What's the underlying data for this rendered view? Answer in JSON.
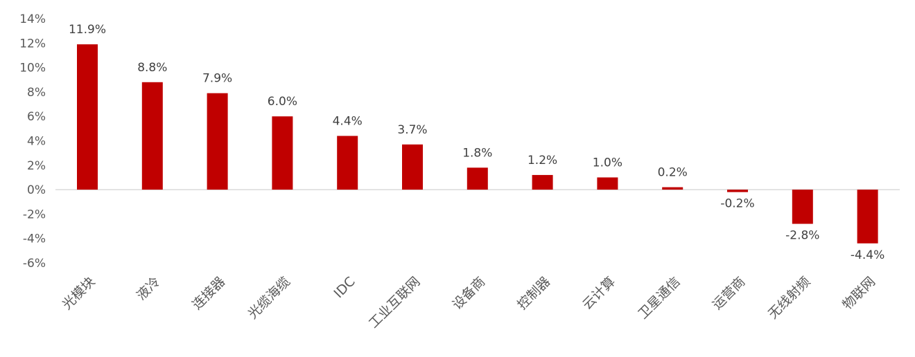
{
  "chart_data": {
    "type": "bar",
    "categories": [
      "光模块",
      "液冷",
      "连接器",
      "光缆海缆",
      "IDC",
      "工业互联网",
      "设备商",
      "控制器",
      "云计算",
      "卫星通信",
      "运营商",
      "无线射频",
      "物联网"
    ],
    "values": [
      11.9,
      8.8,
      7.9,
      6.0,
      4.4,
      3.7,
      1.8,
      1.2,
      1.0,
      0.2,
      -0.2,
      -2.8,
      -4.4
    ],
    "data_labels": [
      "11.9%",
      "8.8%",
      "7.9%",
      "6.0%",
      "4.4%",
      "3.7%",
      "1.8%",
      "1.2%",
      "1.0%",
      "0.2%",
      "-0.2%",
      "-2.8%",
      "-4.4%"
    ],
    "y_ticks": [
      14,
      12,
      10,
      8,
      6,
      4,
      2,
      0,
      -2,
      -4,
      -6
    ],
    "y_tick_labels": [
      "14%",
      "12%",
      "10%",
      "8%",
      "6%",
      "4%",
      "2%",
      "0%",
      "-2%",
      "-4%",
      "-6%"
    ],
    "ylim": [
      -6,
      14
    ],
    "unit": "%",
    "grid": false,
    "legend": "none",
    "colors": {
      "bar": "#C00000",
      "axis": "#D9D9D9",
      "text": "#595959"
    }
  }
}
